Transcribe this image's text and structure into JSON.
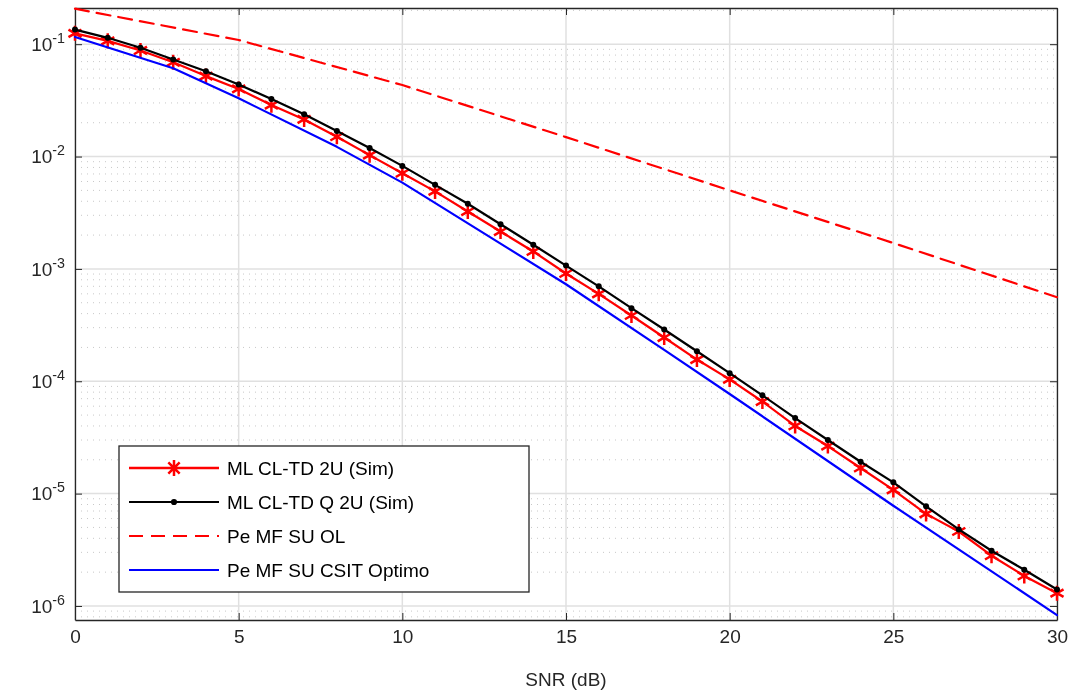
{
  "chart_data": {
    "type": "line",
    "xlabel": "SNR (dB)",
    "log": "y",
    "grid": true,
    "legend": "bottom left",
    "xlim": [
      0,
      30
    ],
    "xticks": [
      0,
      5,
      10,
      15,
      20,
      25,
      30
    ],
    "ylim": [
      7.5e-07,
      0.21
    ],
    "yticks": [
      {
        "value": 0.1,
        "label": "10$^{-1}$"
      },
      {
        "value": 0.01,
        "label": "10$^{-2}$"
      },
      {
        "value": 0.001,
        "label": "10$^{-3}$"
      },
      {
        "value": 0.0001,
        "label": "10$^{-4}$"
      },
      {
        "value": 1e-05,
        "label": "10$^{-5}$"
      },
      {
        "value": 1e-06,
        "label": "10$^{-6}$"
      }
    ],
    "series": [
      {
        "name": "ML CL-TD 2U (Sim)",
        "color": "#ff0000",
        "marker": "cross",
        "line_style": "solid",
        "x": [
          0,
          1,
          2,
          3,
          4,
          5,
          6,
          7,
          8,
          9,
          10,
          11,
          12,
          13,
          14,
          15,
          16,
          17,
          18,
          19,
          20,
          21,
          22,
          23,
          24,
          25,
          26,
          27,
          28,
          29,
          30
        ],
        "values": [
          0.125,
          0.107,
          0.088,
          0.069,
          0.052,
          0.04,
          0.0287,
          0.0214,
          0.015,
          0.0103,
          0.0071,
          0.0049,
          0.00324,
          0.00215,
          0.00143,
          0.00091,
          0.0006,
          0.000385,
          0.000245,
          0.000156,
          0.000104,
          6.6e-05,
          4e-05,
          2.65e-05,
          1.69e-05,
          1.08e-05,
          6.6e-06,
          4.6e-06,
          2.8e-06,
          1.85e-06,
          1.3e-06
        ]
      },
      {
        "name": "ML CL-TD Q 2U (Sim)",
        "color": "#000000",
        "marker": "circle",
        "line_style": "solid",
        "x": [
          0,
          1,
          2,
          3,
          4,
          5,
          6,
          7,
          8,
          9,
          10,
          11,
          12,
          13,
          14,
          15,
          16,
          17,
          18,
          19,
          20,
          21,
          22,
          23,
          24,
          25,
          26,
          27,
          28,
          29,
          30
        ],
        "values": [
          0.135,
          0.114,
          0.093,
          0.073,
          0.0575,
          0.0438,
          0.0325,
          0.0238,
          0.0169,
          0.0119,
          0.00826,
          0.0056,
          0.0038,
          0.0025,
          0.00164,
          0.00107,
          0.0007,
          0.000447,
          0.000289,
          0.000185,
          0.000118,
          7.5e-05,
          4.7e-05,
          3e-05,
          1.92e-05,
          1.26e-05,
          7.7e-06,
          4.8e-06,
          3.1e-06,
          2.1e-06,
          1.4e-06
        ]
      },
      {
        "name": "Pe MF SU OL",
        "color": "#ff0000",
        "marker": "none",
        "line_style": "dashed",
        "x": [
          0,
          5,
          10,
          15,
          20,
          25,
          30
        ],
        "values": [
          0.207,
          0.109,
          0.0433,
          0.0149,
          0.005,
          0.0017,
          0.00056
        ]
      },
      {
        "name": "Pe MF SU CSIT Optimo",
        "color": "#0000ff",
        "marker": "none",
        "line_style": "solid",
        "x": [
          0,
          3,
          5,
          8,
          10,
          15,
          18,
          20,
          25,
          30
        ],
        "values": [
          0.116,
          0.061,
          0.033,
          0.0122,
          0.00586,
          0.00073,
          0.00019,
          7.7e-05,
          7.8e-06,
          8.3e-07
        ]
      }
    ]
  }
}
